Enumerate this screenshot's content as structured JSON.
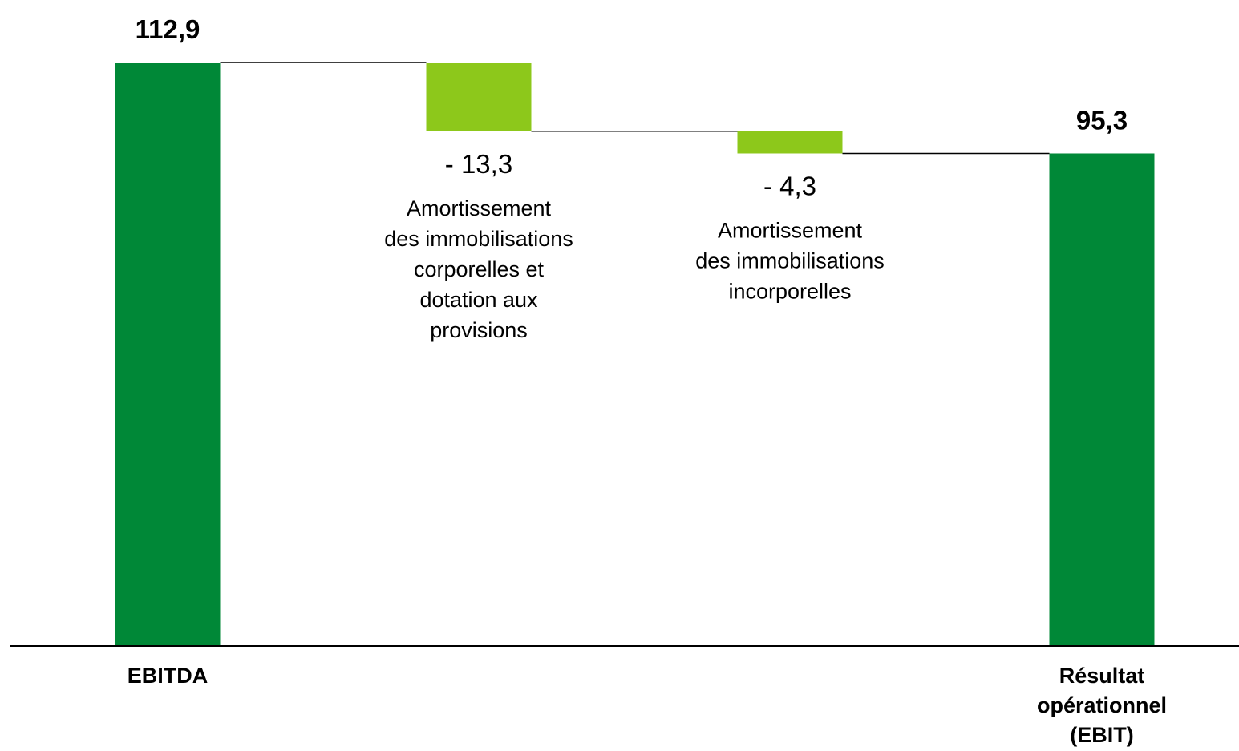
{
  "chart_data": {
    "type": "waterfall",
    "title": "",
    "xlabel": "",
    "ylabel": "",
    "ylim": [
      0,
      112.9
    ],
    "grid": false,
    "legend": "none",
    "steps": [
      {
        "kind": "total",
        "value": 112.9,
        "value_label": "112,9",
        "description": [],
        "category": [
          "EBITDA"
        ]
      },
      {
        "kind": "delta",
        "value": -13.3,
        "value_label": "- 13,3",
        "description": [
          "Amortissement",
          "des immobilisations",
          "corporelles et",
          "dotation aux",
          "provisions"
        ],
        "category": []
      },
      {
        "kind": "delta",
        "value": -4.3,
        "value_label": "- 4,3",
        "description": [
          "Amortissement",
          "des immobilisations",
          "incorporelles"
        ],
        "category": []
      },
      {
        "kind": "total",
        "value": 95.3,
        "value_label": "95,3",
        "description": [],
        "category": [
          "Résultat",
          "opérationnel",
          "(EBIT)"
        ]
      }
    ],
    "colors": {
      "total": "#008837",
      "delta": "#8dc81b",
      "connector": "#000000",
      "axis": "#000000"
    }
  }
}
